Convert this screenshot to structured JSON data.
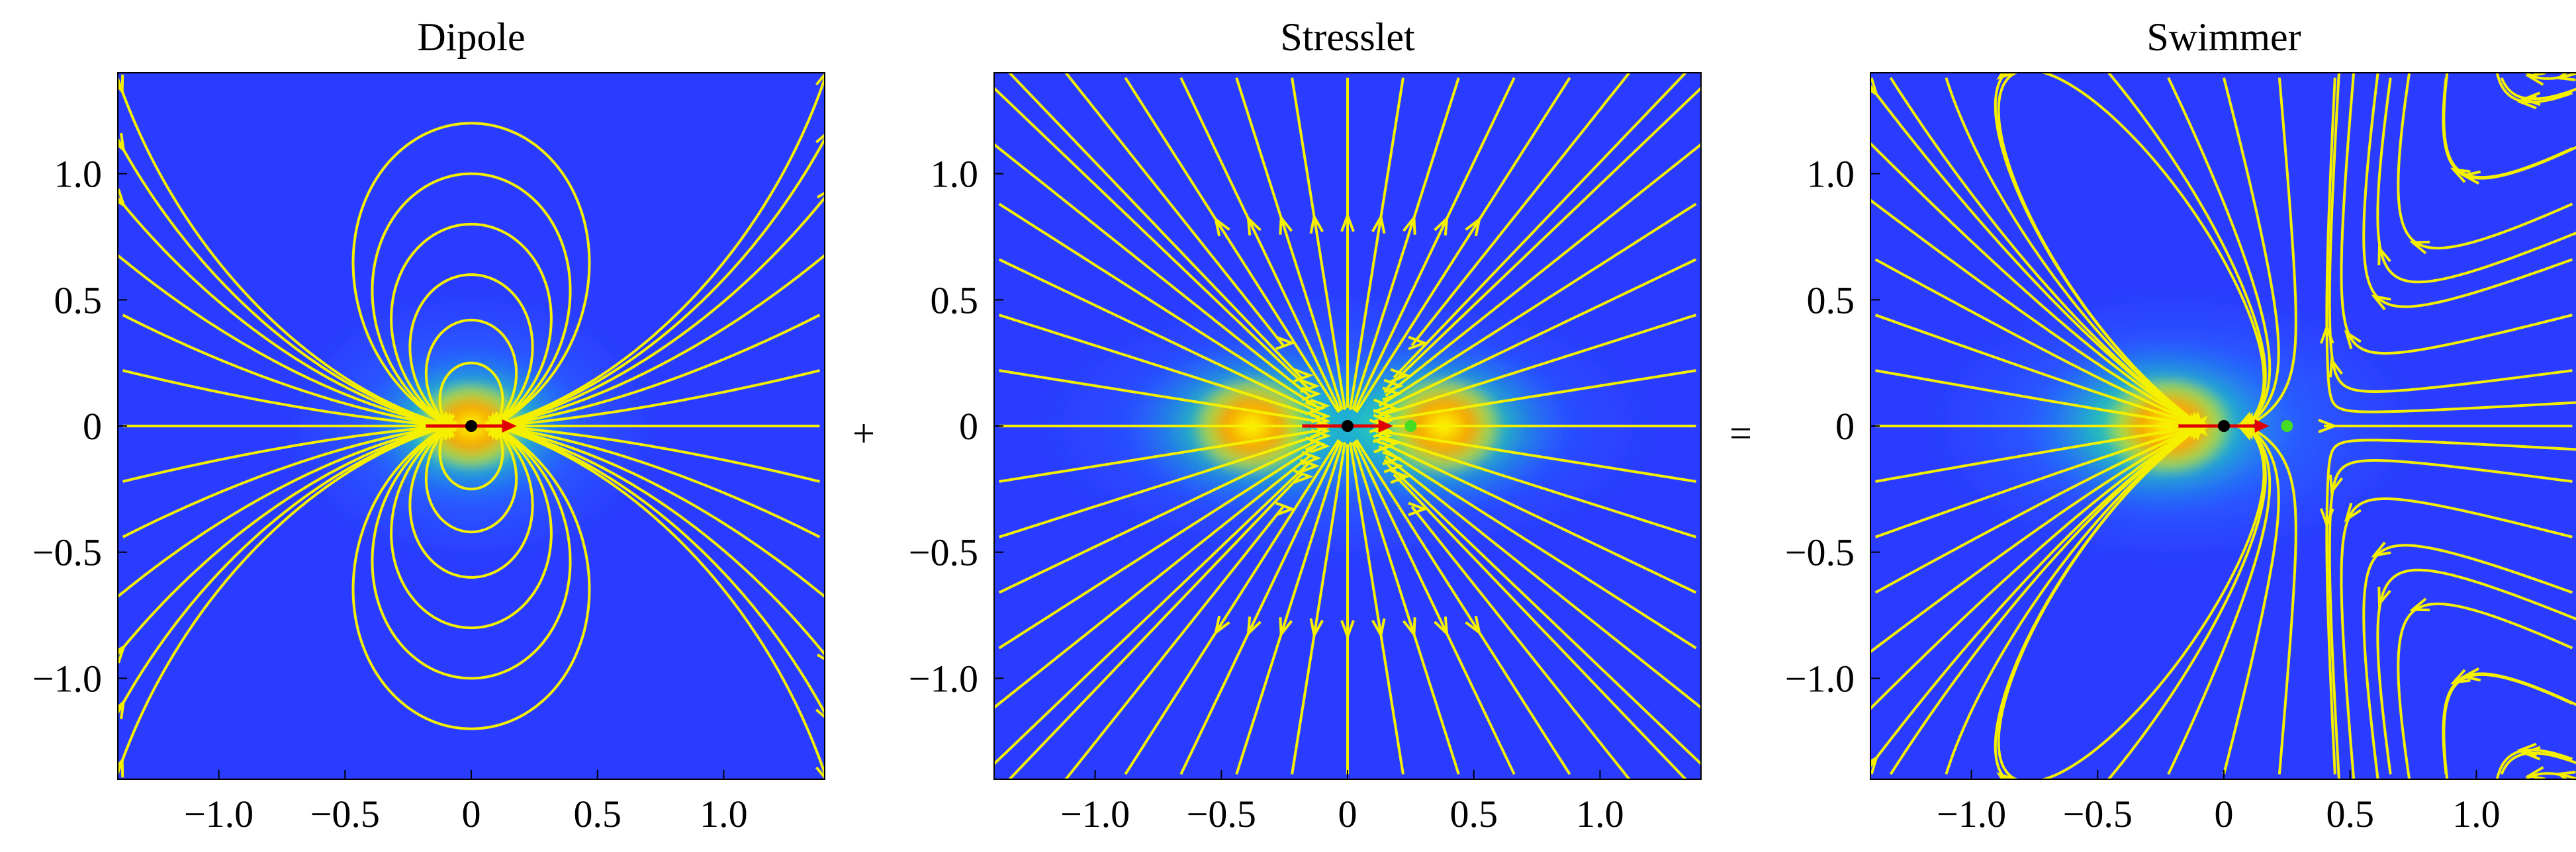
{
  "figure": {
    "operators": [
      "+",
      "="
    ]
  },
  "chart_data": [
    {
      "type": "streamplot",
      "title": "Dipole",
      "field": "dipole",
      "xlim": [
        -1.4,
        1.4
      ],
      "ylim": [
        -1.4,
        1.4
      ],
      "xticks": [
        -1.0,
        -0.5,
        0,
        0.5,
        1.0
      ],
      "yticks": [
        -1.0,
        -0.5,
        0,
        0.5,
        1.0
      ],
      "xtick_labels": [
        "−1.0",
        "−0.5",
        "0",
        "0.5",
        "1.0"
      ],
      "ytick_labels": [
        "1.0",
        "0.5",
        "0",
        "−0.5",
        "−1.0"
      ],
      "show_xtick_labels": true,
      "show_ytick_labels": true,
      "colormap": "jet (speed magnitude)",
      "streamline_color": "#f5f000",
      "markers": [
        {
          "kind": "arrow",
          "x": -0.18,
          "y": 0,
          "dx": 0.36,
          "dy": 0,
          "color": "#e00000"
        },
        {
          "kind": "point",
          "x": 0,
          "y": 0,
          "color": "#000000"
        }
      ]
    },
    {
      "type": "streamplot",
      "title": "Stresslet",
      "field": "stresslet",
      "xlim": [
        -1.4,
        1.4
      ],
      "ylim": [
        -1.4,
        1.4
      ],
      "xticks": [
        -1.0,
        -0.5,
        0,
        0.5,
        1.0
      ],
      "yticks": [
        -1.0,
        -0.5,
        0,
        0.5,
        1.0
      ],
      "xtick_labels": [
        "−1.0",
        "−0.5",
        "0",
        "0.5",
        "1.0"
      ],
      "ytick_labels": [
        "1.0",
        "0.5",
        "0",
        "−0.5",
        "−1.0"
      ],
      "show_xtick_labels": true,
      "show_ytick_labels": true,
      "colormap": "jet (speed magnitude)",
      "streamline_color": "#f5f000",
      "markers": [
        {
          "kind": "arrow",
          "x": -0.18,
          "y": 0,
          "dx": 0.36,
          "dy": 0,
          "color": "#e00000"
        },
        {
          "kind": "point",
          "x": 0,
          "y": 0,
          "color": "#000000"
        },
        {
          "kind": "point",
          "x": 0.25,
          "y": 0,
          "color": "#44dd22"
        }
      ]
    },
    {
      "type": "streamplot",
      "title": "Swimmer",
      "field": "swimmer",
      "xlim": [
        -1.4,
        1.4
      ],
      "ylim": [
        -1.4,
        1.4
      ],
      "xticks": [
        -1.0,
        -0.5,
        0,
        0.5,
        1.0
      ],
      "yticks": [
        -1.0,
        -0.5,
        0,
        0.5,
        1.0
      ],
      "xtick_labels": [
        "−1.0",
        "−0.5",
        "0",
        "0.5",
        "1.0"
      ],
      "ytick_labels": [
        "1.0",
        "0.5",
        "0",
        "−0.5",
        "−1.0"
      ],
      "show_xtick_labels": true,
      "show_ytick_labels": true,
      "colormap": "jet (speed magnitude)",
      "streamline_color": "#f5f000",
      "markers": [
        {
          "kind": "arrow",
          "x": -0.18,
          "y": 0,
          "dx": 0.36,
          "dy": 0,
          "color": "#e00000"
        },
        {
          "kind": "point",
          "x": 0,
          "y": 0,
          "color": "#000000"
        },
        {
          "kind": "point",
          "x": 0.25,
          "y": 0,
          "color": "#44dd22"
        }
      ]
    }
  ]
}
